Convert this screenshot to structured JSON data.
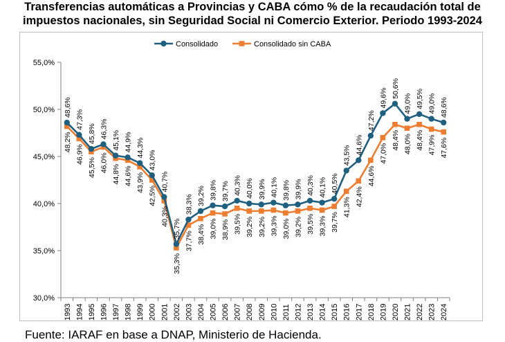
{
  "title_line1": "Transferencias automáticas a Provincias y CABA cómo % de la recaudación total de",
  "title_line2": "impuestos nacionales, sin Seguridad Social ni Comercio Exterior. Periodo 1993-2024",
  "source": "Fuente: IARAF en base a DNAP, Ministerio de Hacienda.",
  "colors": {
    "consolidado": "#1f5f7f",
    "sin_caba": "#ed7d31",
    "axis": "#7f7f7f"
  },
  "chart_data": {
    "type": "line",
    "title": "Transferencias automáticas a Provincias y CABA cómo % de la recaudación total de impuestos nacionales, sin Seguridad Social ni Comercio Exterior. Periodo 1993-2024",
    "xlabel": "",
    "ylabel": "",
    "ylim": [
      30,
      55
    ],
    "yticks": [
      "30,0%",
      "35,0%",
      "40,0%",
      "45,0%",
      "50,0%",
      "55,0%"
    ],
    "grid": false,
    "legend": "top-center",
    "categories": [
      "1993",
      "1994",
      "1995",
      "1996",
      "1997",
      "1998",
      "1999",
      "2000",
      "2001",
      "2002",
      "2003",
      "2004",
      "2005",
      "2006",
      "2007",
      "2008",
      "2009",
      "2010",
      "2011",
      "2012",
      "2013",
      "2014",
      "2015",
      "2016",
      "2017",
      "2018",
      "2019",
      "2020",
      "2021",
      "2022",
      "2023",
      "2024"
    ],
    "series": [
      {
        "name": "Consolidado",
        "values": [
          48.6,
          47.3,
          45.8,
          46.3,
          45.1,
          44.9,
          44.3,
          43.0,
          40.7,
          35.7,
          38.3,
          39.2,
          39.8,
          39.7,
          40.3,
          40.0,
          39.9,
          40.1,
          39.8,
          39.9,
          40.3,
          40.1,
          40.5,
          43.5,
          44.6,
          47.2,
          49.6,
          50.6,
          49.0,
          49.5,
          49.0,
          48.6
        ],
        "labels": [
          "48,6%",
          "47,3%",
          "45,8%",
          "46,3%",
          "45,1%",
          "44,9%",
          "44,3%",
          "43,0%",
          "40,7%",
          "35,7%",
          "38,3%",
          "39,2%",
          "39,8%",
          "39,7%",
          "40,3%",
          "40,0%",
          "39,9%",
          "40,1%",
          "39,8%",
          "39,9%",
          "40,3%",
          "40,1%",
          "40,5%",
          "43,5%",
          "44,6%",
          "47,2%",
          "49,6%",
          "50,6%",
          "49,0%",
          "49,5%",
          "49,0%",
          "48,6%"
        ]
      },
      {
        "name": "Consolidado sin CABA",
        "values": [
          48.2,
          46.9,
          45.5,
          46.0,
          44.8,
          44.6,
          43.9,
          42.5,
          40.3,
          35.3,
          37.7,
          38.4,
          39.0,
          38.9,
          39.5,
          39.2,
          39.2,
          39.3,
          39.0,
          39.2,
          39.5,
          39.3,
          39.7,
          41.3,
          42.4,
          44.6,
          47.0,
          48.4,
          48.0,
          48.4,
          47.9,
          47.6
        ],
        "labels": [
          "48,2%",
          "46,9%",
          "45,5%",
          "46,0%",
          "44,8%",
          "44,6%",
          "43,9%",
          "42,5%",
          "40,3%",
          "35,3%",
          "37,7%",
          "38,4%",
          "39,0%",
          "38,9%",
          "39,5%",
          "39,2%",
          "39,2%",
          "39,3%",
          "39,0%",
          "39,2%",
          "39,5%",
          "39,3%",
          "39,7%",
          "41,3%",
          "42,4%",
          "44,6%",
          "47,0%",
          "48,4%",
          "48,0%",
          "48,4%",
          "47,9%",
          "47,6%"
        ]
      }
    ]
  }
}
